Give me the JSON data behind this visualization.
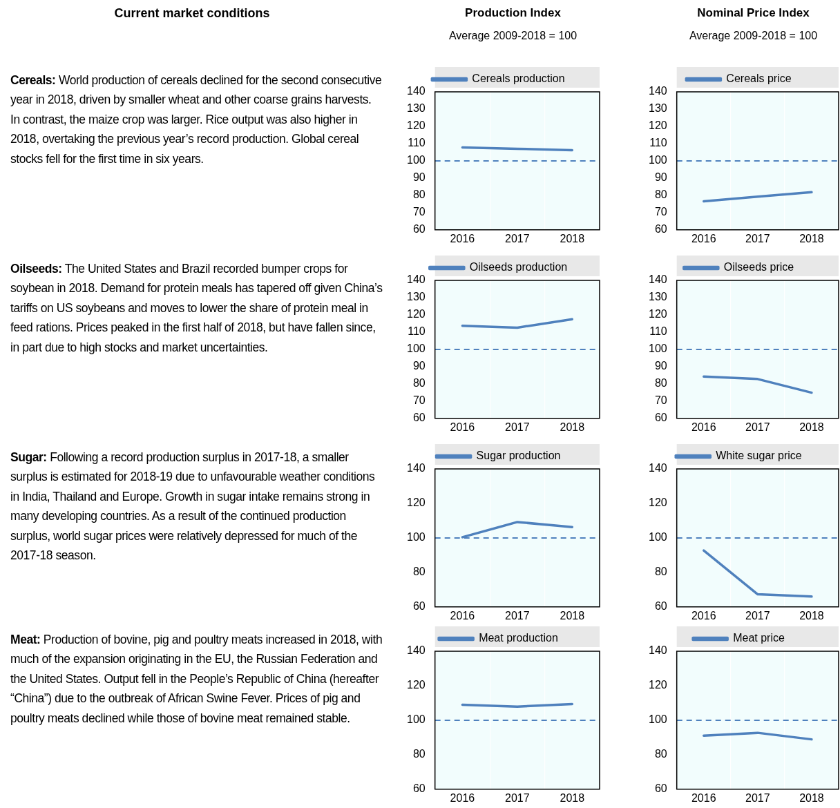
{
  "chart_data": [
    {
      "type": "other",
      "title": "Current market conditions",
      "annotations": [
        "Cereals: World production of cereals declined for the second consecutive year in 2018, driven by smaller wheat and other coarse grains harvests. In contrast, the maize crop was larger. Rice output was also higher in 2018, overtaking the previous year’s record production. Global cereal stocks fell for the first time in six years.",
        "Oilseeds: The United States and Brazil recorded bumper crops for soybean in 2018. Demand for protein meals has tapered off given China’s tariffs on US soybeans and moves to lower the share of protein meal in feed rations. Prices peaked in the first half of 2018, but have fallen since, in part due to high stocks and market uncertainties.",
        "Sugar: Following a record production surplus in 2017-18, a smaller surplus is estimated for 2018-19 due to unfavourable weather conditions in India, Thailand and Europe. Growth in sugar intake remains strong in many developing countries. As a result of the continued production surplus, world sugar prices were relatively depressed for much of the 2017-18 season.",
        "Meat: Production of bovine, pig and poultry meats increased in 2018, with much of the expansion originating in the EU, the Russian Federation and the United States. Output fell in the People’s Republic of China (hereafter “China”) due to the outbreak of African Swine Fever. Prices of pig and poultry meats declined while those of bovine meat remained stable."
      ]
    },
    {
      "type": "line",
      "title": "Production Index",
      "subtitle": "Average 2009-2018 = 100",
      "categories": [
        "2016",
        "2017",
        "2018"
      ],
      "series": [
        {
          "name": "Cereals production",
          "color": "#4f81bd",
          "values": [
            107.8,
            107,
            106.2
          ]
        }
      ],
      "ylim": [
        60,
        140
      ],
      "yticks": [
        60,
        70,
        80,
        90,
        100,
        110,
        120,
        130,
        140
      ],
      "ref_lines": [
        {
          "axis": "y",
          "value": 100,
          "color": "#4f81bd",
          "line_style": "dashed"
        }
      ],
      "legend": "top",
      "grid": "x",
      "marker": "none"
    },
    {
      "type": "line",
      "title": "Nominal Price Index",
      "subtitle": "Average 2009-2018 = 100",
      "categories": [
        "2016",
        "2017",
        "2018"
      ],
      "series": [
        {
          "name": "Cereals price",
          "color": "#4f81bd",
          "values": [
            76.5,
            79.2,
            81.8
          ]
        }
      ],
      "ylim": [
        60,
        140
      ],
      "yticks": [
        60,
        70,
        80,
        90,
        100,
        110,
        120,
        130,
        140
      ],
      "ref_lines": [
        {
          "axis": "y",
          "value": 100,
          "color": "#4f81bd",
          "line_style": "dashed"
        }
      ],
      "legend": "top",
      "grid": "x",
      "marker": "none"
    },
    {
      "type": "line",
      "categories": [
        "2016",
        "2017",
        "2018"
      ],
      "series": [
        {
          "name": "Oilseeds production",
          "color": "#4f81bd",
          "values": [
            113.7,
            112.6,
            117.5
          ]
        }
      ],
      "ylim": [
        60,
        140
      ],
      "yticks": [
        60,
        70,
        80,
        90,
        100,
        110,
        120,
        130,
        140
      ],
      "ref_lines": [
        {
          "axis": "y",
          "value": 100,
          "color": "#4f81bd",
          "line_style": "dashed"
        }
      ],
      "legend": "top",
      "grid": "x",
      "marker": "none"
    },
    {
      "type": "line",
      "categories": [
        "2016",
        "2017",
        "2018"
      ],
      "series": [
        {
          "name": "Oilseeds price",
          "color": "#4f81bd",
          "values": [
            84.2,
            82.8,
            74.9
          ]
        }
      ],
      "ylim": [
        60,
        140
      ],
      "yticks": [
        60,
        70,
        80,
        90,
        100,
        110,
        120,
        130,
        140
      ],
      "ref_lines": [
        {
          "axis": "y",
          "value": 100,
          "color": "#4f81bd",
          "line_style": "dashed"
        }
      ],
      "legend": "top",
      "grid": "x",
      "marker": "none"
    },
    {
      "type": "line",
      "categories": [
        "2016",
        "2017",
        "2018"
      ],
      "series": [
        {
          "name": "Sugar production",
          "color": "#4f81bd",
          "values": [
            100.4,
            109.2,
            106.3
          ]
        }
      ],
      "ylim": [
        60,
        140
      ],
      "yticks": [
        60,
        80,
        100,
        120,
        140
      ],
      "ref_lines": [
        {
          "axis": "y",
          "value": 100,
          "color": "#4f81bd",
          "line_style": "dashed"
        }
      ],
      "legend": "top",
      "grid": "x",
      "marker": "none"
    },
    {
      "type": "line",
      "categories": [
        "2016",
        "2017",
        "2018"
      ],
      "series": [
        {
          "name": "White sugar price",
          "color": "#4f81bd",
          "values": [
            92.7,
            67.3,
            66
          ]
        }
      ],
      "ylim": [
        60,
        140
      ],
      "yticks": [
        60,
        80,
        100,
        120,
        140
      ],
      "ref_lines": [
        {
          "axis": "y",
          "value": 100,
          "color": "#4f81bd",
          "line_style": "dashed"
        }
      ],
      "legend": "top",
      "grid": "x",
      "marker": "none"
    },
    {
      "type": "line",
      "categories": [
        "2016",
        "2017",
        "2018"
      ],
      "series": [
        {
          "name": "Meat production",
          "color": "#4f81bd",
          "values": [
            109,
            107.9,
            109.4
          ]
        }
      ],
      "ylim": [
        60,
        140
      ],
      "yticks": [
        60,
        80,
        100,
        120,
        140
      ],
      "ref_lines": [
        {
          "axis": "y",
          "value": 100,
          "color": "#4f81bd",
          "line_style": "dashed"
        }
      ],
      "legend": "top",
      "grid": "x",
      "marker": "none"
    },
    {
      "type": "line",
      "categories": [
        "2016",
        "2017",
        "2018"
      ],
      "series": [
        {
          "name": "Meat price",
          "color": "#4f81bd",
          "values": [
            91.1,
            92.7,
            88.9
          ]
        }
      ],
      "ylim": [
        60,
        140
      ],
      "yticks": [
        60,
        80,
        100,
        120,
        140
      ],
      "ref_lines": [
        {
          "axis": "y",
          "value": 100,
          "color": "#4f81bd",
          "line_style": "dashed"
        }
      ],
      "legend": "top",
      "grid": "x",
      "marker": "none"
    }
  ]
}
